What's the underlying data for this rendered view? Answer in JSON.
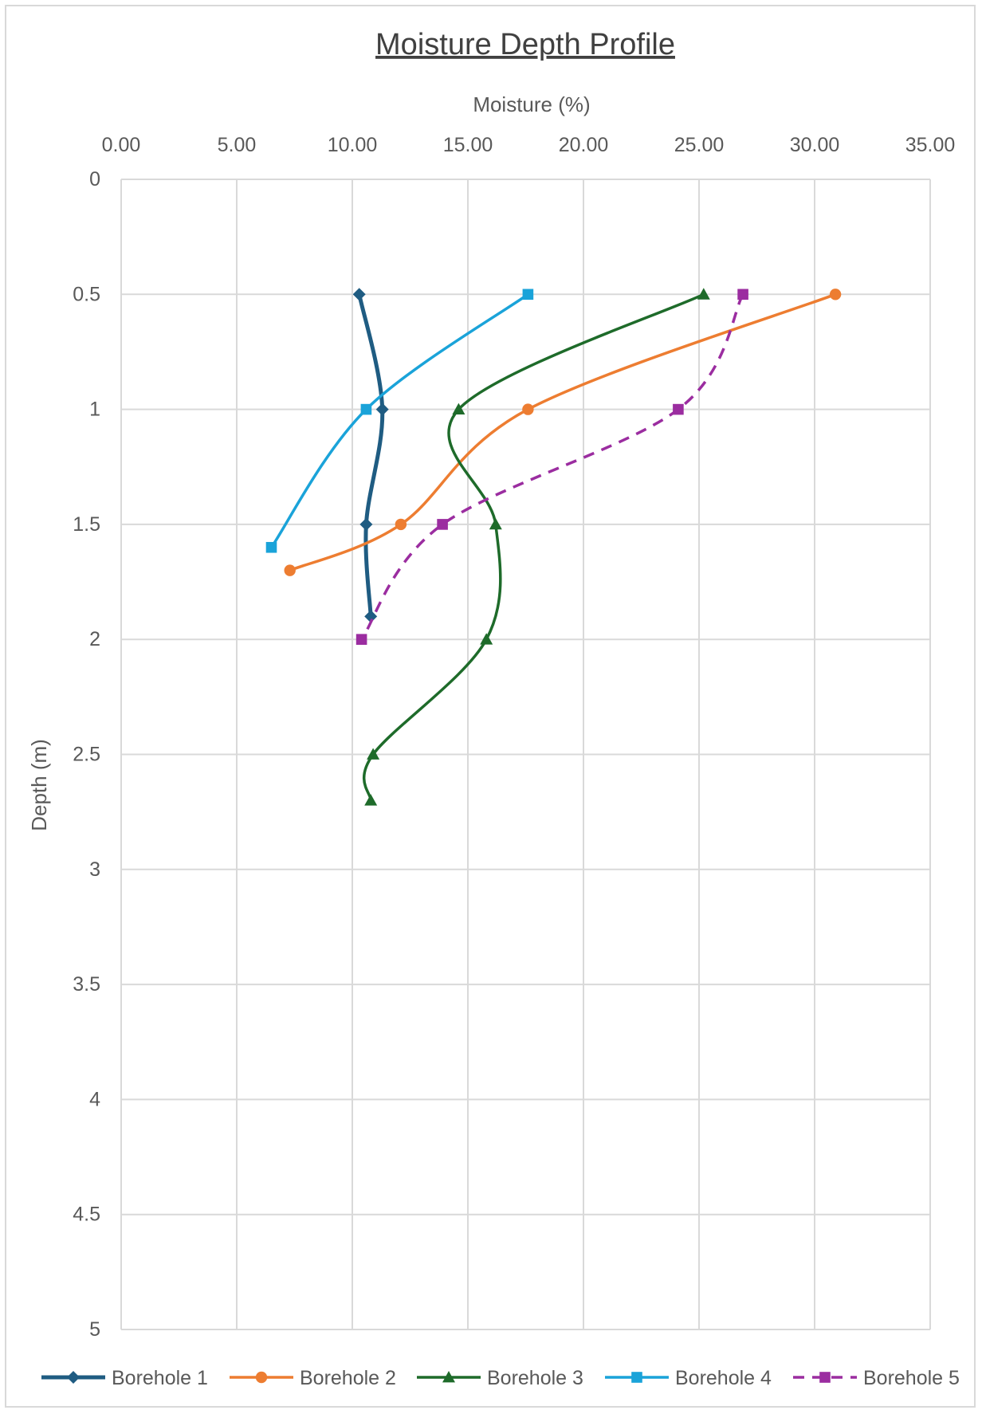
{
  "chart_data": {
    "type": "scatter",
    "title": "Moisture Depth Profile",
    "xlabel": "Moisture (%)",
    "ylabel": "Depth (m)",
    "xlim": [
      0,
      35
    ],
    "ylim": [
      0,
      5
    ],
    "y_reversed": true,
    "x_axis_position": "top",
    "grid": true,
    "legend_position": "bottom",
    "x_ticks": [
      "0.00",
      "5.00",
      "10.00",
      "15.00",
      "20.00",
      "25.00",
      "30.00",
      "35.00"
    ],
    "y_ticks": [
      "0",
      "0.5",
      "1",
      "1.5",
      "2",
      "2.5",
      "3",
      "3.5",
      "4",
      "4.5",
      "5"
    ],
    "series": [
      {
        "name": "Borehole 1",
        "color": "#1f5c82",
        "marker": "diamond",
        "dashed": false,
        "x": [
          10.3,
          11.3,
          10.6,
          10.8
        ],
        "y": [
          0.5,
          1.0,
          1.5,
          1.9
        ]
      },
      {
        "name": "Borehole 2",
        "color": "#ed7d31",
        "marker": "circle",
        "dashed": false,
        "x": [
          30.9,
          17.6,
          12.1,
          7.3
        ],
        "y": [
          0.5,
          1.0,
          1.5,
          1.7
        ]
      },
      {
        "name": "Borehole 3",
        "color": "#1e6b2a",
        "marker": "triangle",
        "dashed": false,
        "x": [
          25.2,
          14.6,
          16.2,
          15.8,
          10.9,
          10.8
        ],
        "y": [
          0.5,
          1.0,
          1.5,
          2.0,
          2.5,
          2.7
        ]
      },
      {
        "name": "Borehole 4",
        "color": "#1aa3d9",
        "marker": "square",
        "dashed": false,
        "x": [
          17.6,
          10.6,
          6.5
        ],
        "y": [
          0.5,
          1.0,
          1.6
        ]
      },
      {
        "name": "Borehole 5",
        "color": "#9b2da0",
        "marker": "square",
        "dashed": true,
        "x": [
          26.9,
          24.1,
          13.9,
          10.4
        ],
        "y": [
          0.5,
          1.0,
          1.5,
          2.0
        ]
      }
    ]
  }
}
